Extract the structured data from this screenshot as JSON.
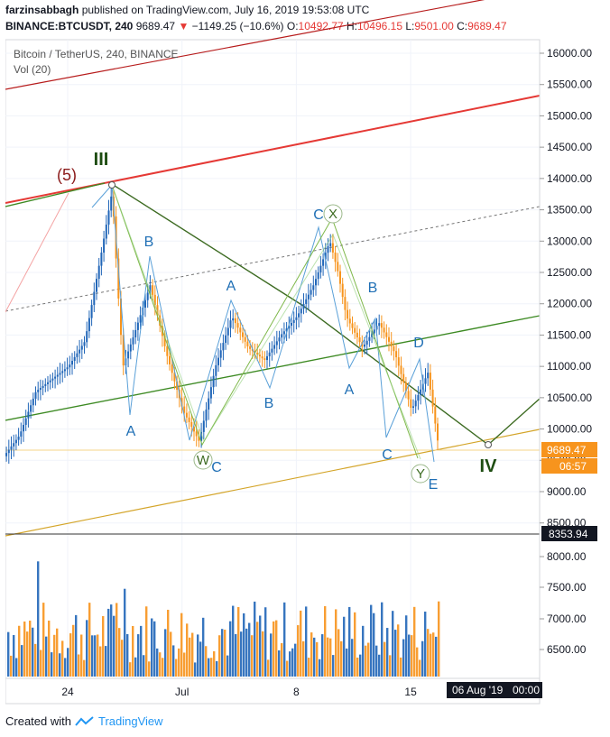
{
  "header": {
    "author": "farzinsabbagh",
    "published_text": "published on TradingView.com, July 16, 2019 19:53:08 UTC",
    "symbol": "BINANCE:BTCUSDT, 240",
    "last": "9689.47",
    "change": "−1149.25 (−10.6%)",
    "o_label": "O:",
    "o_val": "10492.77",
    "h_label": "H:",
    "h_val": "10496.15",
    "l_label": "L:",
    "l_val": "9501.00",
    "c_label": "C:",
    "c_val": "9689.47"
  },
  "chart_title": "Bitcoin / TetherUS, 240, BINANCE",
  "vol_label": "Vol (20)",
  "footer": {
    "created_with": "Created with",
    "brand": "TradingView"
  },
  "colors": {
    "up": "#2166b8",
    "down": "#f7941d",
    "red_channel": "#e53935",
    "green_channel": "#3d8a23",
    "dark_green": "#1e4d12",
    "wave_blue": "#1f6fb5",
    "price_tag": "#f7941d"
  },
  "chart_data": {
    "type": "candlestick",
    "title": "Bitcoin / TetherUS, 240, BINANCE",
    "y_ticks": [
      16000,
      15500,
      15000,
      14500,
      14000,
      13500,
      13000,
      12500,
      12000,
      11500,
      11000,
      10500,
      10000,
      9500,
      9000,
      8500
    ],
    "y_tick_labels": [
      "16000.00",
      "15500.00",
      "15000.00",
      "14500.00",
      "14000.00",
      "13500.00",
      "13000.00",
      "12500.00",
      "12000.00",
      "11500.00",
      "11000.00",
      "10500.00",
      "10000.00",
      "9500.00",
      "9000.00",
      "8500.00"
    ],
    "vol_tick_labels": [
      "8000.00",
      "7500.00",
      "7000.00",
      "6500.00"
    ],
    "x_tick_labels": [
      "24",
      "Jul",
      "8",
      "15"
    ],
    "last_price_tag": "9689.47",
    "countdown_tag": "06:57",
    "crosshair_price_tag": "8353.94",
    "crosshair_date_tag": "06 Aug '19",
    "crosshair_time_tag": "00:00",
    "price_path": [
      [
        "2019-06-19",
        9200
      ],
      [
        "2019-06-21",
        9900
      ],
      [
        "2019-06-22",
        10600
      ],
      [
        "2019-06-23",
        10800
      ],
      [
        "2019-06-24",
        11000
      ],
      [
        "2019-06-25",
        11400
      ],
      [
        "2019-06-26",
        12800
      ],
      [
        "2019-06-26 16:00",
        13800
      ],
      [
        "2019-06-27",
        12300
      ],
      [
        "2019-06-27 08:00",
        11000
      ],
      [
        "2019-06-28",
        11500
      ],
      [
        "2019-06-29",
        12300
      ],
      [
        "2019-06-30",
        11200
      ],
      [
        "2019-07-01",
        10300
      ],
      [
        "2019-07-02",
        9800
      ],
      [
        "2019-07-03",
        11000
      ],
      [
        "2019-07-04",
        11800
      ],
      [
        "2019-07-05",
        11300
      ],
      [
        "2019-07-06",
        11100
      ],
      [
        "2019-07-07",
        11500
      ],
      [
        "2019-07-08",
        11800
      ],
      [
        "2019-07-09",
        12300
      ],
      [
        "2019-07-10",
        13000
      ],
      [
        "2019-07-10 12:00",
        12500
      ],
      [
        "2019-07-11",
        11800
      ],
      [
        "2019-07-12",
        11300
      ],
      [
        "2019-07-13",
        11700
      ],
      [
        "2019-07-14",
        11200
      ],
      [
        "2019-07-15",
        10300
      ],
      [
        "2019-07-15 12:00",
        10600
      ],
      [
        "2019-07-16",
        10900
      ],
      [
        "2019-07-16 16:00",
        9689.47
      ]
    ],
    "annotations": [
      {
        "text": "(5)",
        "color": "#8b1a1a"
      },
      {
        "text": "III",
        "color": "#1e4d12"
      },
      {
        "text": "IV",
        "color": "#1e4d12"
      },
      {
        "text": "X",
        "color": "#3d6b22"
      },
      {
        "text": "W",
        "color": "#3d6b22"
      },
      {
        "text": "Y",
        "color": "#3d6b22"
      },
      {
        "text": "A"
      },
      {
        "text": "B"
      },
      {
        "text": "A"
      },
      {
        "text": "B"
      },
      {
        "text": "C"
      },
      {
        "text": "C"
      },
      {
        "text": "B"
      },
      {
        "text": "A"
      },
      {
        "text": "C"
      },
      {
        "text": "D"
      },
      {
        "text": "E"
      }
    ]
  }
}
